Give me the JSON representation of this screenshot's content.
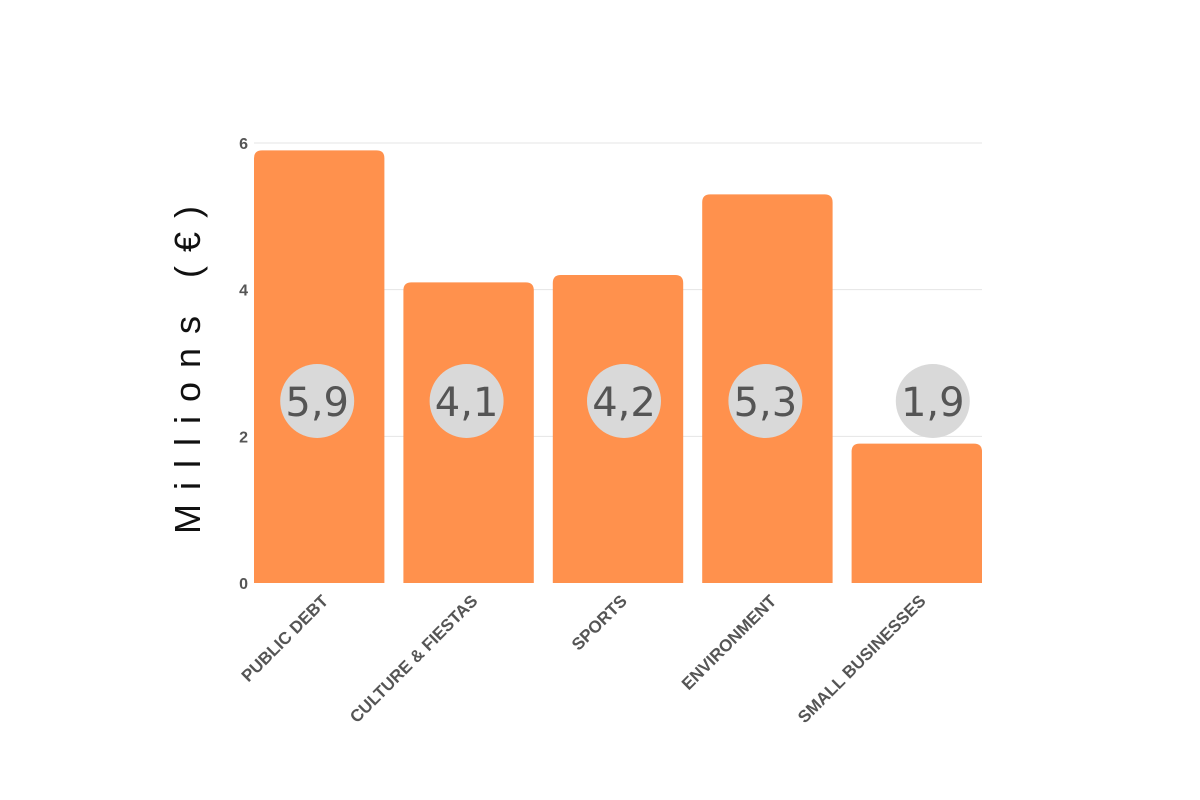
{
  "chart_data": {
    "type": "bar",
    "title": "",
    "xlabel": "",
    "ylabel": "Millions (€)",
    "categories": [
      "PUBLIC DEBT",
      "CULTURE & FIESTAS",
      "SPORTS",
      "ENVIRONMENT",
      "SMALL BUSINESSES"
    ],
    "values": [
      5.9,
      4.1,
      4.2,
      5.3,
      1.9
    ],
    "data_labels": [
      "5,9",
      "4,1",
      "4,2",
      "5,3",
      "1,9"
    ],
    "ylim": [
      0,
      6
    ],
    "yticks": [
      0,
      2,
      4,
      6
    ],
    "grid": true,
    "legend": "none",
    "colors": {
      "bar": "#ff914d",
      "label_bubble": "#d9d9d9",
      "grid": "#e5e5e5",
      "text": "#555555"
    }
  }
}
